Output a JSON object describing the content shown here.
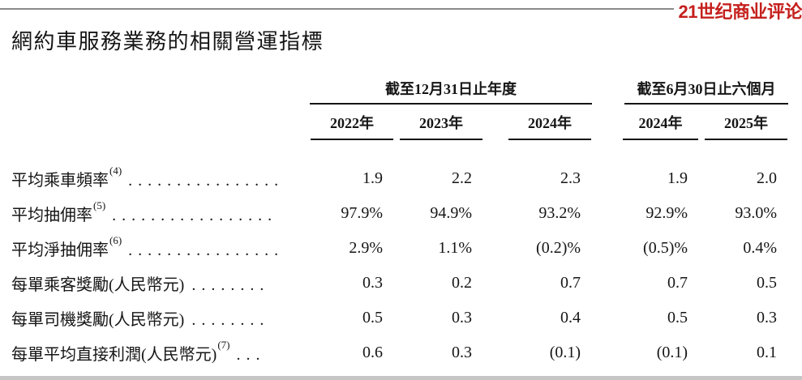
{
  "colors": {
    "logo_red": "#c5201d",
    "rule_gray": "#8b8b8b",
    "text": "#151515"
  },
  "logo": {
    "text": "21世纪商业评论"
  },
  "title": "網約車服務業務的相關營運指標",
  "table": {
    "groups": [
      {
        "label": "截至12月31日止年度"
      },
      {
        "label": "截至6月30日止六個月"
      }
    ],
    "years": [
      "2022年",
      "2023年",
      "2024年",
      "2024年",
      "2025年"
    ],
    "rows": [
      {
        "label": "平均乘車頻率",
        "sup": "(4)",
        "dots": "................",
        "values": [
          "1.9",
          "2.2",
          "2.3",
          "1.9",
          "2.0"
        ]
      },
      {
        "label": "平均抽佣率",
        "sup": "(5)",
        "dots": ".................",
        "values": [
          "97.9%",
          "94.9%",
          "93.2%",
          "92.9%",
          "93.0%"
        ]
      },
      {
        "label": "平均淨抽佣率",
        "sup": "(6)",
        "dots": "................",
        "values": [
          "2.9%",
          "1.1%",
          "(0.2)%",
          "(0.5)%",
          "0.4%"
        ]
      },
      {
        "label": "每單乘客獎勵(人民幣元)",
        "sup": "",
        "dots": "........",
        "values": [
          "0.3",
          "0.2",
          "0.7",
          "0.7",
          "0.5"
        ]
      },
      {
        "label": "每單司機獎勵(人民幣元)",
        "sup": "",
        "dots": "........",
        "values": [
          "0.5",
          "0.3",
          "0.4",
          "0.5",
          "0.3"
        ]
      },
      {
        "label": "每單平均直接利潤(人民幣元)",
        "sup": "(7)",
        "dots": "...",
        "values": [
          "0.6",
          "0.3",
          "(0.1)",
          "(0.1)",
          "0.1"
        ]
      }
    ]
  }
}
